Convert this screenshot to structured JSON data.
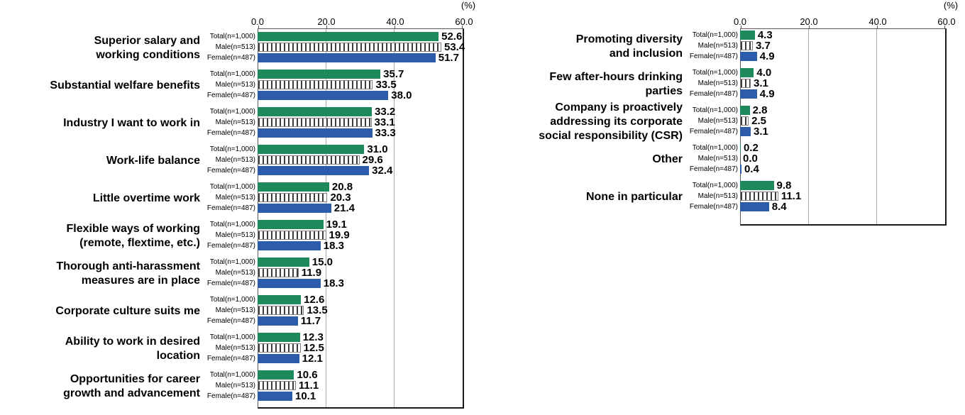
{
  "chart_data": {
    "type": "bar",
    "orientation": "horizontal",
    "unit_label": "(%)",
    "xlim": [
      0,
      60
    ],
    "grid": true,
    "axis_ticks": [
      "0.0",
      "20.0",
      "40.0",
      "60.0"
    ],
    "series_labels": [
      "Total(n=1,000)",
      "Male(n=513)",
      "Female(n=487)"
    ],
    "series_styles": [
      {
        "name": "Total",
        "type": "solid",
        "color": "#1E8A5C"
      },
      {
        "name": "Male",
        "type": "vertical-hatch",
        "stripe_color": "#3D3D3D",
        "background": "#FFFFFF",
        "border_color": "#808080"
      },
      {
        "name": "Female",
        "type": "solid",
        "color": "#2E5CAD"
      }
    ],
    "plot": {
      "border_color": "#595959",
      "grid_color": "#ADADAD"
    },
    "panels": [
      {
        "groups": [
          {
            "category": "Superior salary and\nworking conditions",
            "values": [
              52.6,
              53.4,
              51.7
            ]
          },
          {
            "category": "Substantial welfare benefits",
            "values": [
              35.7,
              33.5,
              38.0
            ]
          },
          {
            "category": "Industry I want to work in",
            "values": [
              33.2,
              33.1,
              33.3
            ]
          },
          {
            "category": "Work-life balance",
            "values": [
              31.0,
              29.6,
              32.4
            ]
          },
          {
            "category": "Little overtime work",
            "values": [
              20.8,
              20.3,
              21.4
            ]
          },
          {
            "category": "Flexible ways of working\n(remote, flextime, etc.)",
            "values": [
              19.1,
              19.9,
              18.3
            ]
          },
          {
            "category": "Thorough anti-harassment\nmeasures are in place",
            "values": [
              15.0,
              11.9,
              18.3
            ]
          },
          {
            "category": "Corporate culture suits me",
            "values": [
              12.6,
              13.5,
              11.7
            ]
          },
          {
            "category": "Ability to work in desired\nlocation",
            "values": [
              12.3,
              12.5,
              12.1
            ]
          },
          {
            "category": "Opportunities for career\ngrowth and advancement",
            "values": [
              10.6,
              11.1,
              10.1
            ]
          }
        ]
      },
      {
        "groups": [
          {
            "category": "Promoting diversity\nand inclusion",
            "values": [
              4.3,
              3.7,
              4.9
            ]
          },
          {
            "category": "Few after-hours drinking\nparties",
            "values": [
              4.0,
              3.1,
              4.9
            ]
          },
          {
            "category": "Company is proactively\naddressing its corporate\nsocial responsibility (CSR)",
            "values": [
              2.8,
              2.5,
              3.1
            ]
          },
          {
            "category": "Other",
            "values": [
              0.2,
              0.0,
              0.4
            ]
          },
          {
            "category": "None in particular",
            "values": [
              9.8,
              11.1,
              8.4
            ],
            "gap_before": true
          }
        ]
      }
    ]
  }
}
